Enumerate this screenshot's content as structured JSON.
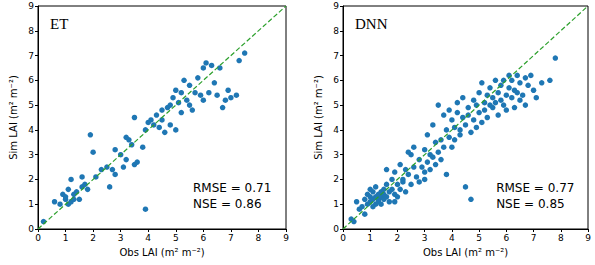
{
  "chart_data": [
    {
      "type": "scatter",
      "title": "ET",
      "x_label": "Obs LAI (m² m⁻²)",
      "y_label": "Sim LAI (m² m⁻²)",
      "xlim": [
        0,
        9
      ],
      "ylim": [
        0,
        9
      ],
      "xticks": [
        0,
        1,
        2,
        3,
        4,
        5,
        6,
        7,
        8,
        9
      ],
      "yticks": [
        0,
        1,
        2,
        3,
        4,
        5,
        6,
        7,
        8,
        9
      ],
      "grid": false,
      "annotations": [
        "RMSE = 0.71",
        "NSE = 0.86"
      ],
      "series": [
        {
          "type": "scatter",
          "color": "#1f77b4",
          "marker": "circle",
          "x": [
            0.2,
            0.6,
            0.8,
            0.9,
            1.0,
            1.0,
            1.1,
            1.1,
            1.2,
            1.2,
            1.3,
            1.3,
            1.4,
            1.5,
            1.6,
            1.6,
            1.7,
            1.8,
            1.9,
            2.0,
            2.1,
            2.3,
            2.5,
            2.6,
            2.7,
            2.8,
            2.8,
            3.0,
            3.1,
            3.2,
            3.2,
            3.3,
            3.4,
            3.5,
            3.5,
            3.6,
            3.8,
            3.9,
            3.9,
            4.0,
            4.1,
            4.2,
            4.3,
            4.4,
            4.5,
            4.5,
            4.6,
            4.7,
            4.8,
            4.8,
            4.9,
            5.0,
            5.0,
            5.1,
            5.2,
            5.2,
            5.3,
            5.4,
            5.5,
            5.5,
            5.6,
            5.7,
            5.8,
            5.9,
            6.0,
            6.0,
            6.1,
            6.2,
            6.3,
            6.4,
            6.5,
            6.6,
            6.7,
            6.8,
            6.9,
            7.0,
            7.2,
            7.5,
            7.3
          ],
          "values": [
            0.3,
            1.1,
            1.0,
            1.4,
            1.2,
            1.3,
            1.6,
            1.0,
            1.1,
            2.0,
            1.4,
            1.2,
            1.5,
            1.2,
            1.7,
            2.1,
            1.8,
            1.6,
            3.8,
            3.1,
            2.1,
            2.4,
            2.5,
            1.7,
            2.4,
            2.2,
            3.2,
            3.0,
            2.5,
            2.8,
            3.7,
            3.6,
            3.4,
            2.6,
            4.5,
            2.7,
            3.3,
            0.8,
            4.0,
            4.3,
            4.4,
            4.2,
            4.6,
            4.1,
            4.8,
            4.4,
            3.9,
            4.9,
            5.0,
            4.2,
            5.3,
            4.0,
            5.6,
            5.1,
            5.5,
            4.7,
            6.0,
            5.2,
            5.8,
            5.0,
            4.8,
            5.5,
            6.1,
            5.4,
            5.2,
            6.5,
            6.7,
            5.5,
            6.6,
            5.9,
            5.4,
            6.5,
            4.9,
            5.2,
            5.6,
            5.3,
            5.4,
            7.1,
            6.8
          ]
        },
        {
          "type": "line",
          "color": "#2ca02c",
          "line_style": "dashed",
          "x": [
            0,
            9
          ],
          "values": [
            0,
            9
          ]
        }
      ]
    },
    {
      "type": "scatter",
      "title": "DNN",
      "x_label": "Obs LAI (m² m⁻²)",
      "y_label": "Sim LAI (m² m⁻²)",
      "xlim": [
        0,
        9
      ],
      "ylim": [
        0,
        9
      ],
      "xticks": [
        0,
        1,
        2,
        3,
        4,
        5,
        6,
        7,
        8,
        9
      ],
      "yticks": [
        0,
        1,
        2,
        3,
        4,
        5,
        6,
        7,
        8,
        9
      ],
      "grid": false,
      "annotations": [
        "RMSE = 0.77",
        "NSE = 0.85"
      ],
      "series": [
        {
          "type": "scatter",
          "color": "#1f77b4",
          "marker": "circle",
          "x": [
            0.3,
            0.4,
            0.5,
            0.6,
            0.7,
            0.8,
            0.9,
            0.9,
            1.0,
            1.0,
            1.0,
            1.1,
            1.1,
            1.1,
            1.2,
            1.2,
            1.2,
            1.3,
            1.3,
            1.3,
            1.4,
            1.4,
            1.4,
            1.5,
            1.5,
            1.5,
            1.6,
            1.6,
            1.7,
            1.7,
            1.8,
            1.8,
            1.9,
            1.9,
            2.0,
            2.0,
            2.1,
            2.1,
            2.2,
            2.2,
            2.3,
            2.3,
            2.4,
            2.5,
            2.5,
            2.6,
            2.6,
            2.7,
            2.8,
            2.8,
            2.9,
            3.0,
            3.0,
            3.1,
            3.1,
            3.2,
            3.2,
            3.3,
            3.3,
            3.4,
            3.4,
            3.5,
            3.5,
            3.6,
            3.6,
            3.7,
            3.7,
            3.8,
            3.8,
            3.9,
            3.9,
            4.0,
            4.0,
            4.1,
            4.1,
            4.2,
            4.2,
            4.3,
            4.3,
            4.4,
            4.4,
            4.5,
            4.5,
            4.6,
            4.6,
            4.7,
            4.7,
            4.8,
            4.8,
            4.9,
            4.9,
            5.0,
            5.0,
            5.1,
            5.1,
            5.2,
            5.2,
            5.3,
            5.3,
            5.4,
            5.4,
            5.5,
            5.5,
            5.6,
            5.6,
            5.7,
            5.7,
            5.8,
            5.8,
            5.9,
            5.9,
            6.0,
            6.0,
            6.1,
            6.1,
            6.2,
            6.2,
            6.3,
            6.3,
            6.4,
            6.4,
            6.5,
            6.5,
            6.6,
            6.7,
            6.7,
            6.8,
            6.9,
            7.0,
            7.1,
            7.3,
            7.6,
            7.8,
            1.6,
            2.4,
            0.8,
            1.9,
            3.0
          ],
          "values": [
            0.4,
            0.3,
            1.1,
            0.8,
            0.9,
            1.2,
            1.0,
            1.4,
            1.1,
            1.3,
            1.6,
            1.2,
            1.5,
            0.9,
            1.3,
            1.0,
            1.7,
            1.4,
            1.1,
            1.2,
            1.5,
            1.3,
            1.0,
            1.4,
            1.6,
            1.2,
            1.3,
            1.8,
            1.5,
            1.1,
            1.6,
            2.0,
            1.4,
            2.3,
            1.8,
            1.3,
            2.6,
            1.6,
            2.0,
            1.9,
            2.4,
            1.5,
            2.2,
            3.0,
            1.8,
            2.5,
            3.3,
            2.1,
            2.8,
            1.9,
            2.5,
            3.2,
            2.3,
            2.7,
            3.8,
            3.0,
            2.4,
            4.2,
            2.9,
            3.5,
            2.6,
            5.0,
            3.1,
            3.6,
            2.8,
            4.6,
            3.3,
            4.0,
            2.2,
            3.7,
            4.8,
            4.4,
            3.3,
            4.1,
            3.6,
            4.7,
            5.1,
            4.0,
            3.8,
            4.5,
            5.3,
            4.2,
            1.7,
            4.9,
            4.6,
            3.9,
            1.2,
            5.2,
            4.4,
            5.0,
            4.1,
            5.5,
            4.7,
            4.3,
            5.9,
            5.1,
            4.8,
            5.4,
            4.5,
            5.0,
            5.7,
            4.9,
            5.3,
            6.0,
            5.1,
            4.6,
            5.5,
            5.2,
            5.8,
            5.0,
            6.0,
            5.4,
            4.8,
            6.2,
            5.7,
            5.3,
            6.0,
            5.6,
            4.9,
            6.2,
            5.5,
            5.9,
            5.2,
            5.4,
            6.1,
            5.0,
            5.8,
            6.2,
            5.6,
            5.3,
            5.9,
            6.0,
            6.9,
            2.4,
            3.1,
            0.6,
            1.1,
            2.0
          ]
        },
        {
          "type": "line",
          "color": "#2ca02c",
          "line_style": "dashed",
          "x": [
            0,
            9
          ],
          "values": [
            0,
            9
          ]
        }
      ]
    }
  ]
}
